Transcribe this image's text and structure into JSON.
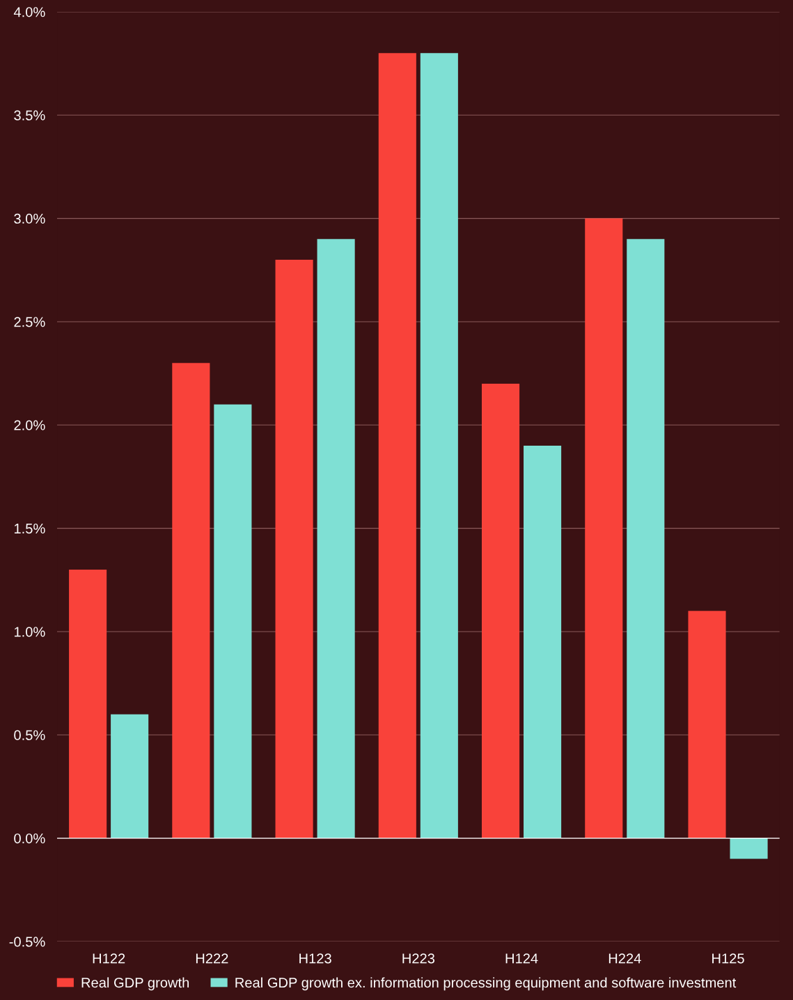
{
  "chart_data": {
    "type": "bar",
    "categories": [
      "H122",
      "H222",
      "H123",
      "H223",
      "H124",
      "H224",
      "H125"
    ],
    "series": [
      {
        "name": "Real GDP growth",
        "color": "#f9423a",
        "values": [
          1.3,
          2.3,
          2.8,
          3.8,
          2.2,
          3.0,
          1.1
        ]
      },
      {
        "name": "Real GDP growth ex. information processing equipment and software investment",
        "color": "#7fe0d4",
        "values": [
          0.6,
          2.1,
          2.9,
          3.8,
          1.9,
          2.9,
          -0.1
        ]
      }
    ],
    "ylim": [
      -0.5,
      4.0
    ],
    "yticks": [
      {
        "value": -0.5,
        "label": "-0.5%"
      },
      {
        "value": 0.0,
        "label": "0.0%"
      },
      {
        "value": 0.5,
        "label": "0.5%"
      },
      {
        "value": 1.0,
        "label": "1.0%"
      },
      {
        "value": 1.5,
        "label": "1.5%"
      },
      {
        "value": 2.0,
        "label": "2.0%"
      },
      {
        "value": 2.5,
        "label": "2.5%"
      },
      {
        "value": 3.0,
        "label": "3.0%"
      },
      {
        "value": 3.5,
        "label": "3.5%"
      },
      {
        "value": 4.0,
        "label": "4.0%"
      }
    ],
    "ref_lines": [
      {
        "axis": "y",
        "value": 0.0,
        "color": "#ffffff"
      }
    ],
    "grid": "y",
    "legend": "bottom"
  }
}
